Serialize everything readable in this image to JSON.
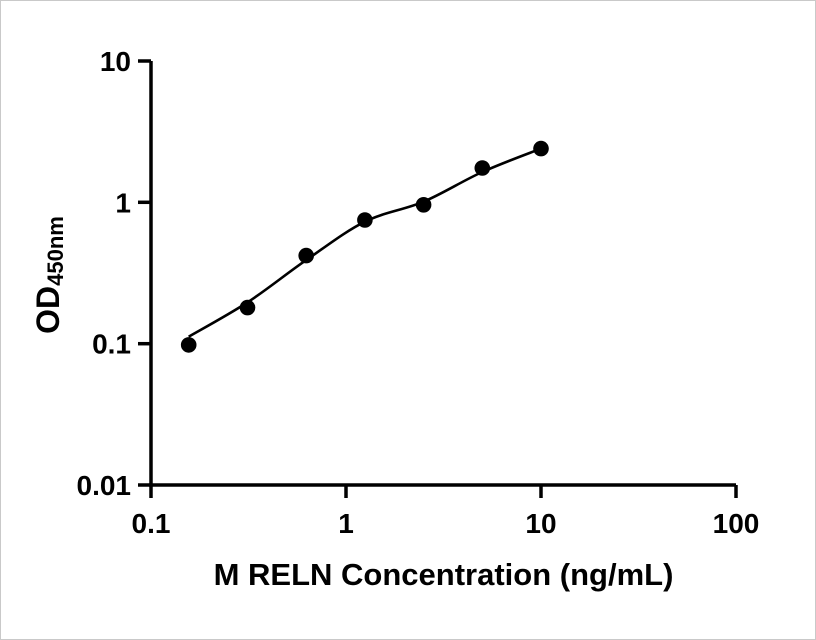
{
  "figure": {
    "x_axis_title": "M RELN Concentration (ng/mL)",
    "y_axis_title_main": "OD",
    "y_axis_title_sub": "450nm"
  },
  "chart_data": {
    "type": "scatter",
    "title": "",
    "xlabel": "M RELN Concentration (ng/mL)",
    "ylabel": "OD450nm",
    "xscale": "log",
    "yscale": "log",
    "xlim": [
      0.1,
      100
    ],
    "ylim": [
      0.01,
      10
    ],
    "grid": false,
    "legend": "none",
    "x_ticks": [
      {
        "value": 0.1,
        "label": "0.1"
      },
      {
        "value": 1,
        "label": "1"
      },
      {
        "value": 10,
        "label": "10"
      },
      {
        "value": 100,
        "label": "100"
      }
    ],
    "y_ticks": [
      {
        "value": 0.01,
        "label": "0.01"
      },
      {
        "value": 0.1,
        "label": "0.1"
      },
      {
        "value": 1,
        "label": "1"
      },
      {
        "value": 10,
        "label": "10"
      }
    ],
    "points": {
      "x": [
        0.156,
        0.3125,
        0.625,
        1.25,
        2.5,
        5,
        10
      ],
      "y": [
        0.098,
        0.18,
        0.42,
        0.75,
        0.96,
        1.75,
        2.4
      ]
    },
    "fit_curve": {
      "x": [
        0.156,
        0.3125,
        0.625,
        1.25,
        2.5,
        5,
        10
      ],
      "y": [
        0.112,
        0.196,
        0.39,
        0.73,
        1.01,
        1.64,
        2.4
      ]
    },
    "marker_color": "#000000",
    "line_color": "#000000",
    "axis_color": "#000000",
    "background": "#ffffff"
  }
}
